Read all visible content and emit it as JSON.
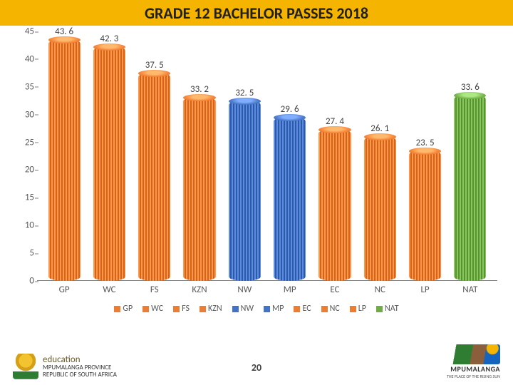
{
  "title": {
    "text": "GRADE 12 BACHELOR PASSES 2018",
    "fontsize": 22,
    "bg_color": "#f4b400",
    "text_color": "#202020"
  },
  "chart": {
    "type": "bar",
    "ylim": [
      0,
      45
    ],
    "ytick_step": 5,
    "yticks": [
      0,
      5,
      10,
      15,
      20,
      25,
      30,
      35,
      40,
      45
    ],
    "axis_color": "#808080",
    "label_fontsize": 13,
    "bar_width_pct": 7.0,
    "gap_pct": 2.8,
    "colors": {
      "orange": "#ed7d31",
      "blue": "#4472c4",
      "green": "#70ad47"
    },
    "categories": [
      "GP",
      "WC",
      "FS",
      "KZN",
      "NW",
      "MP",
      "EC",
      "NC",
      "LP",
      "NAT"
    ],
    "values": [
      43.6,
      42.3,
      37.5,
      33.2,
      32.5,
      29.6,
      27.4,
      26.1,
      23.5,
      33.6
    ],
    "labels": [
      "43. 6",
      "42. 3",
      "37. 5",
      "33. 2",
      "32. 5",
      "29. 6",
      "27. 4",
      "26. 1",
      "23. 5",
      "33. 6"
    ],
    "series_color_keys": [
      "orange",
      "orange",
      "orange",
      "orange",
      "blue",
      "blue",
      "orange",
      "orange",
      "orange",
      "green"
    ]
  },
  "legend": {
    "items": [
      {
        "label": "GP",
        "color_key": "orange"
      },
      {
        "label": "WC",
        "color_key": "orange"
      },
      {
        "label": "FS",
        "color_key": "orange"
      },
      {
        "label": "KZN",
        "color_key": "orange"
      },
      {
        "label": "NW",
        "color_key": "blue"
      },
      {
        "label": "MP",
        "color_key": "blue"
      },
      {
        "label": "EC",
        "color_key": "orange"
      },
      {
        "label": "NC",
        "color_key": "orange"
      },
      {
        "label": "LP",
        "color_key": "orange"
      },
      {
        "label": "NAT",
        "color_key": "green"
      }
    ]
  },
  "footer": {
    "page_number": "20",
    "left_logo": {
      "line1": "education",
      "line2": "MPUMALANGA PROVINCE",
      "line3": "REPUBLIC OF SOUTH AFRICA"
    },
    "right_logo": {
      "name": "MPUMALANGA",
      "tagline": "THE PLACE OF THE RISING SUN"
    }
  }
}
